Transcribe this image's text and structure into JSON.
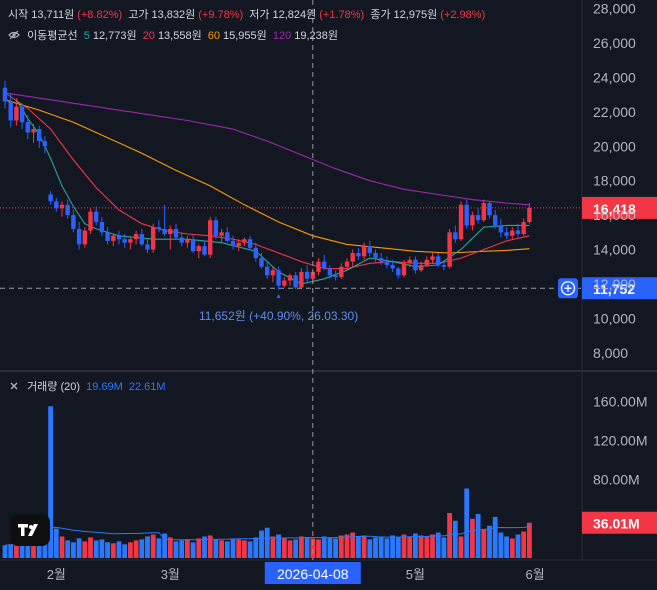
{
  "header": {
    "open_label": "시작",
    "open_value": "13,711원",
    "open_change": "(+8.82%)",
    "high_label": "고가",
    "high_value": "13,832원",
    "high_change": "(+9.78%)",
    "low_label": "저가",
    "low_value": "12,824원",
    "low_change": "(+1.78%)",
    "close_label": "종가",
    "close_value": "12,975원",
    "close_change": "(+2.98%)"
  },
  "ma_legend": {
    "label": "이동평균선",
    "items": [
      {
        "period": "5",
        "value": "12,773원",
        "color": "#26a69a"
      },
      {
        "period": "20",
        "value": "13,558원",
        "color": "#f23645"
      },
      {
        "period": "60",
        "value": "15,955원",
        "color": "#ff9800"
      },
      {
        "period": "120",
        "value": "19,238원",
        "color": "#9c27b0"
      }
    ]
  },
  "volume_legend": {
    "label": "거래량 (20)",
    "value1": "19.69M",
    "value2": "22.61M"
  },
  "colors": {
    "up": "#f23645",
    "down": "#2962ff",
    "vol_up": "#f23645",
    "vol_down": "#2979ff",
    "ma5": "#26a69a",
    "ma20": "#f23645",
    "ma60": "#ff9800",
    "ma120": "#9c27b0",
    "vol_ma": "#2979ff"
  },
  "chart_data": {
    "type": "candlestick",
    "price_axis": {
      "ticks": [
        "28,000",
        "26,000",
        "24,000",
        "22,000",
        "20,000",
        "18,000",
        "16,000",
        "14,000",
        "12,000",
        "10,000",
        "8,000"
      ],
      "tick_values": [
        28000,
        26000,
        24000,
        22000,
        20000,
        18000,
        16000,
        14000,
        12000,
        10000,
        8000
      ],
      "ylim": [
        7000,
        28500
      ]
    },
    "volume_axis": {
      "ticks": [
        "160.00M",
        "120.00M",
        "80.00M"
      ],
      "tick_values": [
        160,
        120,
        80
      ],
      "ylim": [
        0,
        190
      ]
    },
    "time_axis": {
      "ticks": [
        "2월",
        "3월",
        "5월",
        "6월"
      ],
      "tick_index": [
        9,
        29,
        72,
        93
      ],
      "crosshair_label": "2026-04-08"
    },
    "current_price": {
      "label": "16,418",
      "value": 16418
    },
    "crosshair_price": {
      "label": "11,752",
      "value": 11752
    },
    "current_volume": {
      "label": "36.01M",
      "value": 36.01
    },
    "annotation": {
      "text": "11,652원 (+40.90%, 26.03.30)",
      "value": 11652,
      "index": 48
    },
    "crosshair_index": 54,
    "candles": [
      [
        23400,
        23800,
        22200,
        22600
      ],
      [
        22600,
        23100,
        21100,
        21500
      ],
      [
        21500,
        22800,
        21200,
        22300
      ],
      [
        22300,
        22500,
        21000,
        21400
      ],
      [
        21400,
        21800,
        20400,
        20800
      ],
      [
        20800,
        21300,
        20200,
        21000
      ],
      [
        21000,
        21200,
        19900,
        20300
      ],
      [
        20300,
        20600,
        19600,
        20000
      ],
      [
        17200,
        17400,
        16600,
        16800
      ],
      [
        16800,
        17000,
        16200,
        16400
      ],
      [
        16400,
        16800,
        15900,
        16600
      ],
      [
        16600,
        16900,
        15800,
        16000
      ],
      [
        16000,
        16300,
        15000,
        15200
      ],
      [
        15200,
        15600,
        14000,
        14300
      ],
      [
        14300,
        15300,
        14100,
        15100
      ],
      [
        15100,
        16400,
        14900,
        16200
      ],
      [
        16200,
        16500,
        15400,
        15600
      ],
      [
        15600,
        15900,
        14800,
        15000
      ],
      [
        15000,
        15300,
        14300,
        14500
      ],
      [
        14500,
        14900,
        14200,
        14800
      ],
      [
        14800,
        15100,
        14300,
        14600
      ],
      [
        14600,
        14900,
        14100,
        14400
      ],
      [
        14400,
        14700,
        14000,
        14600
      ],
      [
        14600,
        15100,
        14300,
        14900
      ],
      [
        14900,
        15200,
        14200,
        14300
      ],
      [
        14300,
        14600,
        13800,
        14000
      ],
      [
        14000,
        15500,
        13800,
        15300
      ],
      [
        15300,
        15700,
        15000,
        15200
      ],
      [
        15200,
        16600,
        14800,
        14900
      ],
      [
        14900,
        15400,
        14000,
        15200
      ],
      [
        15200,
        15500,
        14600,
        14700
      ],
      [
        14700,
        15000,
        14200,
        14400
      ],
      [
        14400,
        14800,
        14100,
        14600
      ],
      [
        14600,
        14800,
        13800,
        13900
      ],
      [
        13900,
        14300,
        13500,
        14200
      ],
      [
        14200,
        14500,
        13600,
        13700
      ],
      [
        13700,
        15900,
        13500,
        15700
      ],
      [
        15700,
        15900,
        14600,
        14800
      ],
      [
        14800,
        15200,
        14400,
        15000
      ],
      [
        15000,
        15300,
        14400,
        14500
      ],
      [
        14500,
        14800,
        14000,
        14200
      ],
      [
        14200,
        14600,
        13900,
        14400
      ],
      [
        14400,
        14700,
        14200,
        14600
      ],
      [
        14600,
        14800,
        14000,
        14100
      ],
      [
        14100,
        14400,
        13300,
        13500
      ],
      [
        13500,
        13800,
        12900,
        13000
      ],
      [
        13000,
        13300,
        12300,
        12500
      ],
      [
        12500,
        13000,
        12100,
        12800
      ],
      [
        12800,
        13000,
        11652,
        11900
      ],
      [
        11900,
        12400,
        11800,
        12200
      ],
      [
        12200,
        12600,
        11900,
        12500
      ],
      [
        12500,
        12700,
        11700,
        11800
      ],
      [
        11800,
        12900,
        11700,
        12700
      ],
      [
        12700,
        13100,
        12100,
        12300
      ],
      [
        12300,
        12900,
        12200,
        12700
      ],
      [
        12700,
        13500,
        12500,
        13300
      ],
      [
        13300,
        13700,
        12800,
        12900
      ],
      [
        12900,
        13100,
        12300,
        12500
      ],
      [
        12500,
        12800,
        12200,
        12400
      ],
      [
        12400,
        13200,
        12300,
        13000
      ],
      [
        13000,
        13500,
        12800,
        13300
      ],
      [
        13300,
        14000,
        13000,
        13800
      ],
      [
        13800,
        14100,
        13400,
        13600
      ],
      [
        13600,
        14400,
        13400,
        14200
      ],
      [
        14200,
        14500,
        13600,
        13800
      ],
      [
        13800,
        14000,
        13300,
        13500
      ],
      [
        13500,
        13800,
        13100,
        13300
      ],
      [
        13300,
        13600,
        12900,
        13100
      ],
      [
        13100,
        13400,
        12700,
        12900
      ],
      [
        12900,
        13000,
        12300,
        12500
      ],
      [
        12500,
        13400,
        12400,
        13200
      ],
      [
        13200,
        13600,
        13000,
        13400
      ],
      [
        13400,
        13600,
        12600,
        12800
      ],
      [
        12800,
        13300,
        12700,
        13100
      ],
      [
        13100,
        13600,
        13000,
        13400
      ],
      [
        13400,
        13800,
        13200,
        13600
      ],
      [
        13600,
        13800,
        13000,
        13100
      ],
      [
        13100,
        13300,
        12800,
        13000
      ],
      [
        13000,
        15200,
        12900,
        15000
      ],
      [
        15000,
        15400,
        14400,
        14600
      ],
      [
        14600,
        16800,
        14500,
        16600
      ],
      [
        16600,
        16900,
        15200,
        15400
      ],
      [
        15400,
        16200,
        15100,
        16000
      ],
      [
        16000,
        16400,
        15500,
        15700
      ],
      [
        15700,
        16900,
        15600,
        16700
      ],
      [
        16700,
        16800,
        15800,
        16000
      ],
      [
        16000,
        16300,
        15200,
        15400
      ],
      [
        15400,
        15800,
        14700,
        15000
      ],
      [
        15000,
        15300,
        14600,
        14800
      ],
      [
        14800,
        15300,
        14600,
        15100
      ],
      [
        15100,
        15500,
        14700,
        14900
      ],
      [
        14900,
        15800,
        14800,
        15600
      ],
      [
        15600,
        16700,
        15500,
        16418
      ]
    ],
    "volumes": [
      13,
      14,
      15,
      17,
      16,
      15,
      18,
      20,
      155,
      30,
      22,
      18,
      16,
      20,
      17,
      21,
      18,
      19,
      16,
      15,
      17,
      14,
      16,
      18,
      19,
      22,
      24,
      20,
      25,
      21,
      17,
      18,
      19,
      16,
      20,
      22,
      23,
      19,
      18,
      17,
      20,
      19,
      18,
      17,
      21,
      28,
      31,
      22,
      24,
      20,
      18,
      19,
      22,
      21,
      20,
      19,
      22,
      21,
      20,
      23,
      24,
      26,
      22,
      23,
      19,
      21,
      22,
      20,
      23,
      21,
      24,
      22,
      25,
      23,
      22,
      24,
      26,
      21,
      46,
      38,
      22,
      71,
      40,
      45,
      29,
      33,
      42,
      26,
      22,
      20,
      24,
      27,
      36.01
    ],
    "ma5": [
      [
        2,
        22700
      ],
      [
        4,
        21600
      ],
      [
        6,
        20700
      ],
      [
        8,
        19300
      ],
      [
        10,
        17700
      ],
      [
        12,
        16500
      ],
      [
        14,
        15500
      ],
      [
        16,
        15200
      ],
      [
        20,
        14800
      ],
      [
        26,
        14600
      ],
      [
        32,
        14600
      ],
      [
        38,
        14400
      ],
      [
        44,
        13900
      ],
      [
        48,
        12700
      ],
      [
        52,
        12000
      ],
      [
        56,
        12300
      ],
      [
        60,
        12800
      ],
      [
        64,
        13500
      ],
      [
        68,
        13300
      ],
      [
        72,
        13000
      ],
      [
        76,
        13100
      ],
      [
        80,
        14000
      ],
      [
        84,
        15300
      ],
      [
        88,
        15400
      ],
      [
        92,
        15400
      ]
    ],
    "ma20": [
      [
        0,
        23100
      ],
      [
        4,
        22200
      ],
      [
        8,
        21000
      ],
      [
        12,
        19200
      ],
      [
        16,
        17600
      ],
      [
        20,
        16300
      ],
      [
        24,
        15500
      ],
      [
        28,
        15100
      ],
      [
        32,
        14900
      ],
      [
        36,
        14800
      ],
      [
        40,
        14600
      ],
      [
        44,
        14300
      ],
      [
        48,
        13800
      ],
      [
        52,
        13300
      ],
      [
        56,
        12900
      ],
      [
        60,
        12900
      ],
      [
        64,
        13200
      ],
      [
        68,
        13300
      ],
      [
        72,
        13200
      ],
      [
        76,
        13200
      ],
      [
        80,
        13500
      ],
      [
        84,
        14000
      ],
      [
        88,
        14500
      ],
      [
        92,
        14800
      ]
    ],
    "ma60": [
      [
        0,
        22700
      ],
      [
        6,
        22100
      ],
      [
        12,
        21400
      ],
      [
        18,
        20500
      ],
      [
        24,
        19600
      ],
      [
        30,
        18600
      ],
      [
        36,
        17700
      ],
      [
        42,
        16600
      ],
      [
        48,
        15600
      ],
      [
        54,
        14800
      ],
      [
        60,
        14300
      ],
      [
        66,
        14100
      ],
      [
        72,
        13900
      ],
      [
        78,
        13800
      ],
      [
        84,
        13900
      ],
      [
        88,
        13950
      ],
      [
        92,
        14050
      ]
    ],
    "ma120": [
      [
        0,
        23100
      ],
      [
        8,
        22700
      ],
      [
        16,
        22300
      ],
      [
        24,
        21900
      ],
      [
        32,
        21500
      ],
      [
        40,
        21000
      ],
      [
        46,
        20300
      ],
      [
        52,
        19500
      ],
      [
        58,
        18700
      ],
      [
        64,
        18000
      ],
      [
        70,
        17500
      ],
      [
        76,
        17200
      ],
      [
        82,
        16900
      ],
      [
        88,
        16700
      ],
      [
        92,
        16600
      ]
    ]
  }
}
